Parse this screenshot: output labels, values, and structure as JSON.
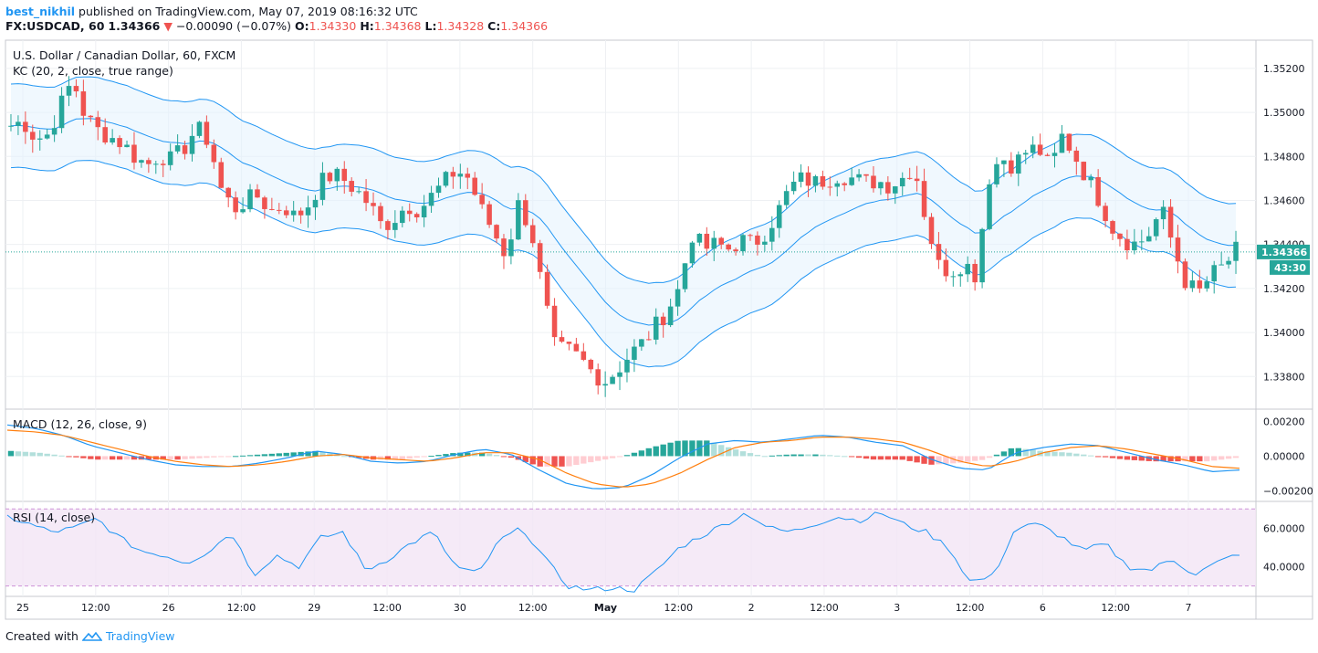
{
  "header": {
    "user": "best_nikhil",
    "published": "published on TradingView.com, May 07, 2019 08:16:32 UTC",
    "symbol": "FX:USDCAD, 60",
    "last": "1.34366",
    "change": "−0.00090 (−0.07%)",
    "o_label": "O:",
    "o_value": "1.34330",
    "h_label": "H:",
    "h_value": "1.34368",
    "l_label": "L:",
    "l_value": "1.34328",
    "c_label": "C:",
    "c_value": "1.34366"
  },
  "colors": {
    "up": "#26a69a",
    "down": "#ef5350",
    "band": "#2196f3",
    "orange": "#ff7f0e",
    "rsi": "#e1bee7"
  },
  "chart_data": [
    {
      "type": "candlestick",
      "title": "U.S. Dollar / Canadian Dollar, 60, FXCM",
      "indicator": "KC (20, 2, close, true range)",
      "ylim": [
        1.3366,
        1.3532
      ],
      "yticks": [
        "1.35200",
        "1.35000",
        "1.34800",
        "1.34600",
        "1.34400",
        "1.34200",
        "1.34000",
        "1.33800"
      ],
      "last_price_label": "1.34366",
      "countdown_label": "43:30",
      "x_labels": [
        "25",
        "12:00",
        "26",
        "12:00",
        "29",
        "12:00",
        "30",
        "12:00",
        "May",
        "12:00",
        "2",
        "12:00",
        "3",
        "12:00",
        "6",
        "12:00",
        "7"
      ],
      "close_path": [
        1.3494,
        1.3496,
        1.3488,
        1.349,
        1.3503,
        1.3515,
        1.3498,
        1.3492,
        1.3489,
        1.3486,
        1.348,
        1.3476,
        1.3481,
        1.3478,
        1.3484,
        1.3493,
        1.3487,
        1.3465,
        1.3456,
        1.346,
        1.3462,
        1.3455,
        1.3458,
        1.3452,
        1.3458,
        1.3468,
        1.3472,
        1.3469,
        1.3464,
        1.3458,
        1.3448,
        1.3452,
        1.3458,
        1.3456,
        1.3462,
        1.3468,
        1.3474,
        1.347,
        1.3456,
        1.3446,
        1.3435,
        1.3458,
        1.3448,
        1.3418,
        1.3392,
        1.3392,
        1.3388,
        1.3382,
        1.3378,
        1.3383,
        1.339,
        1.3395,
        1.3402,
        1.341,
        1.342,
        1.3445,
        1.3438,
        1.344,
        1.3438,
        1.3442,
        1.344,
        1.3446,
        1.3455,
        1.3466,
        1.347,
        1.3468,
        1.347,
        1.3472,
        1.347,
        1.3468,
        1.3469,
        1.3467,
        1.347,
        1.3476,
        1.345,
        1.343,
        1.3428,
        1.3432,
        1.3426,
        1.347,
        1.348,
        1.3476,
        1.3482,
        1.3484,
        1.3474,
        1.349,
        1.348,
        1.347,
        1.346,
        1.3448,
        1.3442,
        1.344,
        1.3445,
        1.3456,
        1.3438,
        1.3422,
        1.3418,
        1.3426,
        1.343,
        1.3437
      ]
    },
    {
      "type": "line",
      "title": "MACD (12, 26, close, 9)",
      "ylim": [
        -0.0024,
        0.0025
      ],
      "yticks": [
        "0.00200",
        "0.00000",
        "−0.00200"
      ],
      "macd": [
        0.0018,
        0.0016,
        0.0012,
        0.0006,
        0.0002,
        -0.0002,
        -0.0005,
        -0.0006,
        -0.0006,
        -0.0004,
        -0.0001,
        0.0003,
        0.0001,
        -0.0003,
        -0.0004,
        -0.0003,
        0.0001,
        0.0004,
        0.0001,
        -0.0008,
        -0.0016,
        -0.0019,
        -0.0018,
        -0.0011,
        -0.0001,
        0.0007,
        0.0009,
        0.0008,
        0.001,
        0.0012,
        0.0011,
        0.0008,
        0.0006,
        -0.0002,
        -0.0007,
        -0.0008,
        0.0002,
        0.0005,
        0.0007,
        0.0006,
        0.0002,
        -0.0002,
        -0.0005,
        -0.0009,
        -0.0008
      ],
      "signal": [
        0.0015,
        0.0014,
        0.0012,
        0.0008,
        0.0004,
        0.0,
        -0.0003,
        -0.0005,
        -0.0006,
        -0.0005,
        -0.0003,
        0.0,
        0.0001,
        -0.0001,
        -0.0002,
        -0.0003,
        -0.0001,
        0.0002,
        0.0002,
        -0.0002,
        -0.001,
        -0.0016,
        -0.0018,
        -0.0016,
        -0.001,
        -0.0002,
        0.0005,
        0.0008,
        0.0009,
        0.0011,
        0.0011,
        0.001,
        0.0008,
        0.0003,
        -0.0003,
        -0.0006,
        -0.0003,
        0.0002,
        0.0005,
        0.0006,
        0.0004,
        0.0001,
        -0.0002,
        -0.0006,
        -0.0007
      ]
    },
    {
      "type": "line",
      "title": "RSI (14, close)",
      "ylim": [
        26,
        72
      ],
      "yticks": [
        "60.0000",
        "40.0000"
      ],
      "band": [
        30,
        70
      ],
      "values": [
        66,
        62,
        58,
        60,
        65,
        55,
        48,
        46,
        42,
        48,
        58,
        36,
        46,
        40,
        55,
        58,
        38,
        44,
        52,
        58,
        40,
        36,
        54,
        60,
        44,
        30,
        28,
        29,
        28,
        38,
        50,
        56,
        62,
        68,
        60,
        58,
        62,
        66,
        64,
        68,
        62,
        58,
        50,
        32,
        35,
        60,
        62,
        56,
        48,
        52,
        40,
        38,
        44,
        36,
        42,
        47
      ]
    }
  ],
  "footer": {
    "prefix": "Created with",
    "brand": "TradingView"
  }
}
